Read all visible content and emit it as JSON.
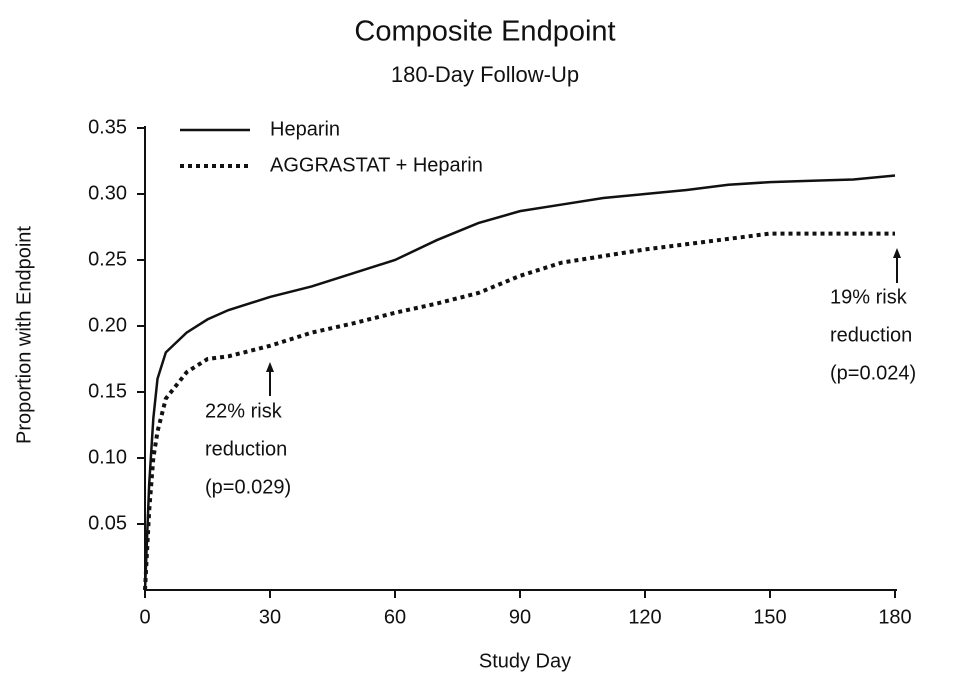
{
  "chart_data": {
    "type": "line",
    "title": "Composite Endpoint",
    "subtitle": "180-Day Follow-Up",
    "x_label": "Study Day",
    "y_label": "Proportion with Endpoint",
    "x": [
      0,
      1,
      2,
      3,
      5,
      10,
      15,
      20,
      30,
      40,
      50,
      60,
      70,
      80,
      90,
      100,
      110,
      120,
      130,
      140,
      150,
      160,
      170,
      180
    ],
    "series": [
      {
        "name": "Heparin",
        "color": "#111111",
        "dash": "solid",
        "values": [
          0,
          0.08,
          0.13,
          0.16,
          0.18,
          0.195,
          0.205,
          0.212,
          0.222,
          0.23,
          0.24,
          0.25,
          0.265,
          0.278,
          0.287,
          0.292,
          0.297,
          0.3,
          0.303,
          0.307,
          0.309,
          0.31,
          0.311,
          0.314
        ]
      },
      {
        "name": "AGGRASTAT + Heparin",
        "color": "#111111",
        "dash": "dotted",
        "values": [
          0,
          0.06,
          0.1,
          0.12,
          0.145,
          0.165,
          0.175,
          0.177,
          0.185,
          0.195,
          0.202,
          0.21,
          0.217,
          0.225,
          0.238,
          0.248,
          0.253,
          0.258,
          0.262,
          0.266,
          0.27,
          0.27,
          0.27,
          0.27
        ]
      }
    ],
    "xlim": [
      0,
      180
    ],
    "xticks": [
      0,
      30,
      60,
      90,
      120,
      150,
      180
    ],
    "ylim": [
      0,
      0.35
    ],
    "yticks": [
      0.05,
      {
        "value": 0.1,
        "label": "0.10"
      },
      0.15,
      {
        "value": 0.2,
        "label": "0.20"
      },
      0.25,
      {
        "value": 0.3,
        "label": "0.30"
      },
      0.35
    ],
    "legend": "top-left",
    "annotations": [
      [
        "22% risk",
        "reduction",
        "(p=0.029)"
      ],
      [
        "19% risk",
        "reduction",
        "(p=0.024)"
      ]
    ]
  }
}
